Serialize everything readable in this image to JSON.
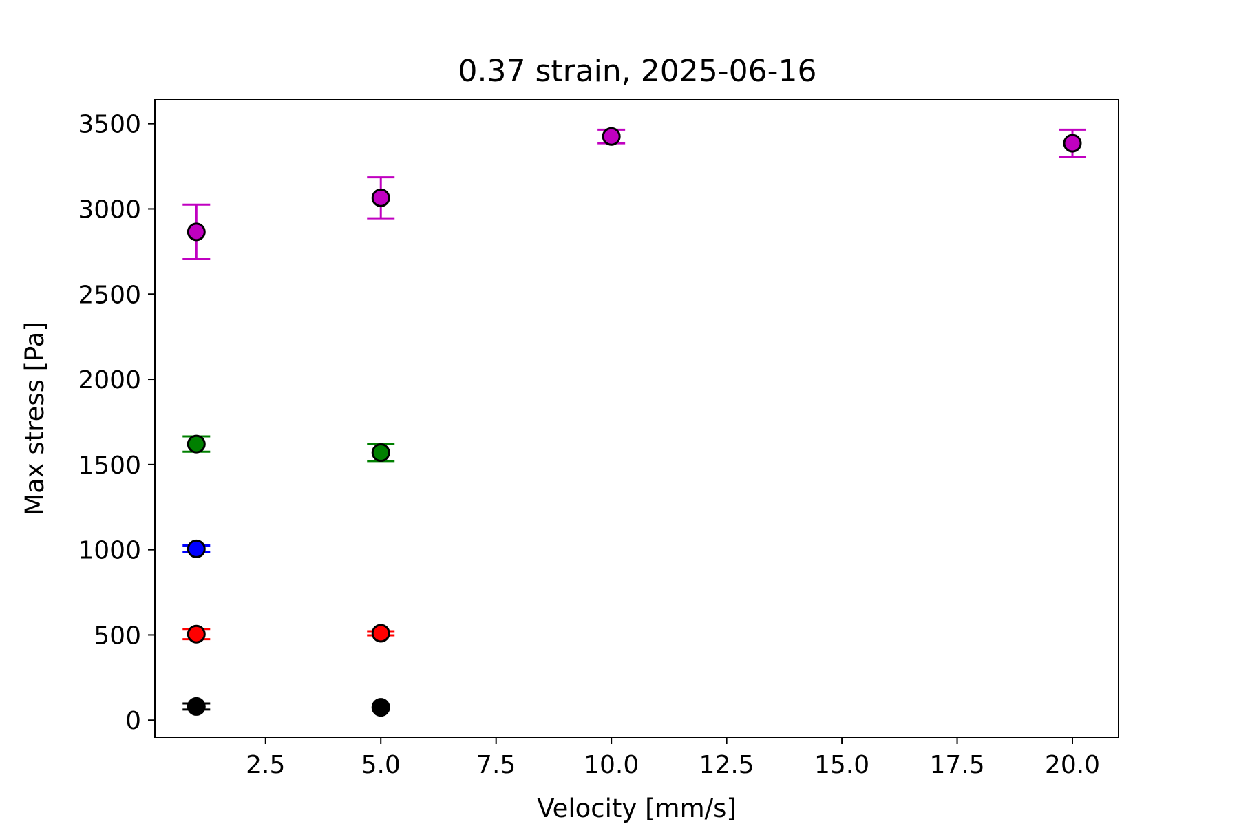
{
  "chart_data": {
    "type": "scatter",
    "title": "0.37 strain, 2025-06-16",
    "xlabel": "Velocity [mm/s]",
    "ylabel": "Max stress [Pa]",
    "xlim": [
      0.1,
      21.0
    ],
    "ylim": [
      -100,
      3640
    ],
    "xticks": [
      "2.5",
      "5.0",
      "7.5",
      "10.0",
      "12.5",
      "15.0",
      "17.5",
      "20.0"
    ],
    "yticks": [
      "0",
      "500",
      "1000",
      "1500",
      "2000",
      "2500",
      "3000",
      "3500"
    ],
    "grid": false,
    "legend": "none",
    "series": [
      {
        "color": "#000000",
        "points": [
          {
            "x": 1,
            "y": 80,
            "err": 18
          },
          {
            "x": 5,
            "y": 75,
            "err": 0
          }
        ]
      },
      {
        "color": "#ff0000",
        "points": [
          {
            "x": 1,
            "y": 505,
            "err": 30
          },
          {
            "x": 5,
            "y": 510,
            "err": 12
          }
        ]
      },
      {
        "color": "#0000ff",
        "points": [
          {
            "x": 1,
            "y": 1005,
            "err": 20
          }
        ]
      },
      {
        "color": "#008000",
        "points": [
          {
            "x": 1,
            "y": 1620,
            "err": 45
          },
          {
            "x": 5,
            "y": 1570,
            "err": 50
          }
        ]
      },
      {
        "color": "#c000c0",
        "points": [
          {
            "x": 1,
            "y": 2865,
            "err": 160
          },
          {
            "x": 5,
            "y": 3065,
            "err": 120
          },
          {
            "x": 10,
            "y": 3425,
            "err": 40
          },
          {
            "x": 20,
            "y": 3385,
            "err": 80
          }
        ]
      }
    ]
  }
}
